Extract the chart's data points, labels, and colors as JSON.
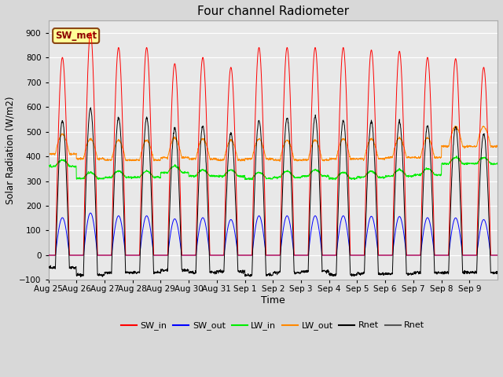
{
  "title": "Four channel Radiometer",
  "xlabel": "Time",
  "ylabel": "Solar Radiation (W/m2)",
  "ylim": [
    -100,
    950
  ],
  "yticks": [
    -100,
    0,
    100,
    200,
    300,
    400,
    500,
    600,
    700,
    800,
    900
  ],
  "fig_bg_color": "#d8d8d8",
  "plot_bg_color": "#e8e8e8",
  "annotation_text": "SW_met",
  "annotation_bg": "#ffff99",
  "annotation_border": "#8b4513",
  "annotation_text_color": "#8b0000",
  "colors": {
    "SW_in": "#ff0000",
    "SW_out": "#0000ff",
    "LW_in": "#00ee00",
    "LW_out": "#ff8800",
    "Rnet": "#000000",
    "Rnet2": "#555555"
  },
  "n_days": 16,
  "x_tick_labels": [
    "Aug 25",
    "Aug 26",
    "Aug 27",
    "Aug 28",
    "Aug 29",
    "Aug 30",
    "Aug 31",
    "Sep 1",
    "Sep 2",
    "Sep 3",
    "Sep 4",
    "Sep 5",
    "Sep 6",
    "Sep 7",
    "Sep 8",
    "Sep 9"
  ],
  "legend_entries": [
    {
      "label": "SW_in",
      "color": "#ff0000"
    },
    {
      "label": "SW_out",
      "color": "#0000ff"
    },
    {
      "label": "LW_in",
      "color": "#00ee00"
    },
    {
      "label": "LW_out",
      "color": "#ff8800"
    },
    {
      "label": "Rnet",
      "color": "#000000"
    },
    {
      "label": "Rnet",
      "color": "#555555"
    }
  ],
  "sw_peaks": [
    800,
    900,
    840,
    840,
    775,
    800,
    760,
    840,
    840,
    840,
    840,
    830,
    825,
    800,
    795,
    760
  ],
  "lw_in_base": [
    360,
    310,
    315,
    315,
    335,
    320,
    320,
    310,
    315,
    320,
    310,
    315,
    320,
    325,
    370,
    370
  ],
  "lw_out_base": [
    410,
    390,
    385,
    385,
    395,
    390,
    385,
    390,
    385,
    385,
    390,
    390,
    395,
    395,
    440,
    440
  ]
}
